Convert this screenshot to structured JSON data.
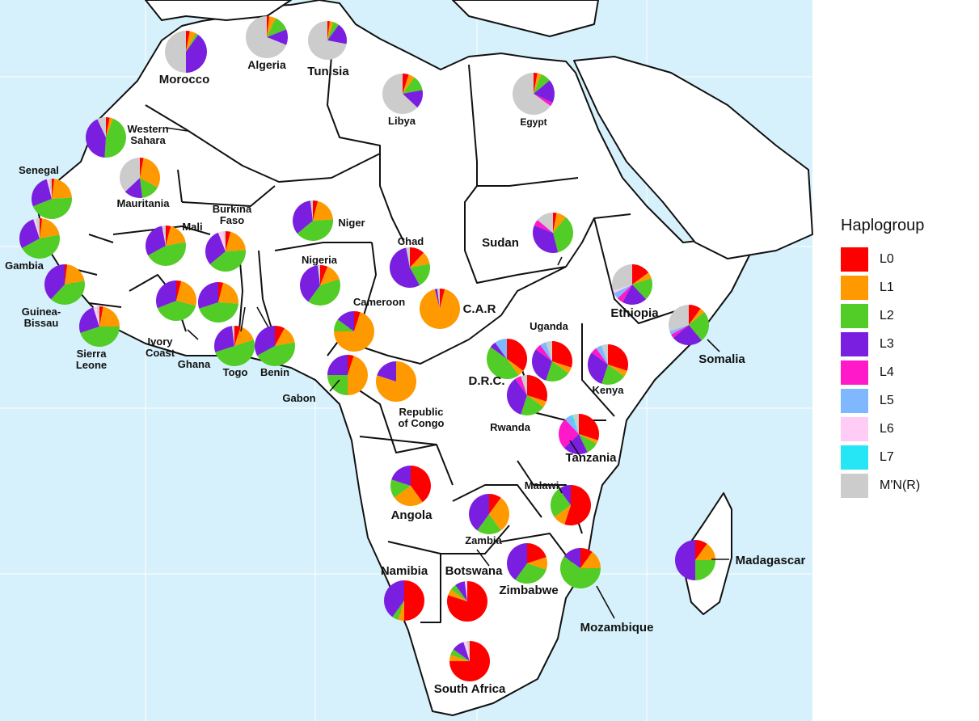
{
  "legend": {
    "title": "Haplogroup",
    "items": [
      {
        "label": "L0",
        "color": "#ff0000"
      },
      {
        "label": "L1",
        "color": "#ff9900"
      },
      {
        "label": "L2",
        "color": "#52cc26"
      },
      {
        "label": "L3",
        "color": "#7a1ee0"
      },
      {
        "label": "L4",
        "color": "#ff19c8"
      },
      {
        "label": "L5",
        "color": "#80b8ff"
      },
      {
        "label": "L6",
        "color": "#ffccf5"
      },
      {
        "label": "L7",
        "color": "#26e6f5"
      },
      {
        "label": "M'N(R)",
        "color": "#cccccc"
      }
    ]
  },
  "map": {
    "sea_color": "#d6f1fb",
    "land_color": "#ffffff",
    "border_color": "#111111"
  },
  "countries": [
    {
      "name": "Morocco",
      "pie": [
        3,
        5,
        2,
        40,
        0,
        0,
        0,
        0,
        50
      ]
    },
    {
      "name": "Algeria",
      "pie": [
        2,
        5,
        12,
        12,
        0,
        0,
        0,
        0,
        69
      ]
    },
    {
      "name": "Tunisia",
      "pie": [
        2,
        3,
        5,
        18,
        0,
        0,
        0,
        0,
        72
      ]
    },
    {
      "name": "Libya",
      "pie": [
        5,
        5,
        12,
        15,
        0,
        0,
        0,
        0,
        63
      ]
    },
    {
      "name": "Egypt",
      "pie": [
        3,
        3,
        8,
        18,
        3,
        0,
        0,
        0,
        65
      ]
    },
    {
      "name": "Western Sahara",
      "pie": [
        3,
        3,
        45,
        42,
        0,
        0,
        0,
        0,
        7
      ]
    },
    {
      "name": "Mauritania",
      "pie": [
        3,
        30,
        15,
        15,
        0,
        0,
        0,
        0,
        37
      ]
    },
    {
      "name": "Senegal",
      "pie": [
        2,
        22,
        45,
        27,
        0,
        0,
        2,
        0,
        2
      ]
    },
    {
      "name": "Gambia",
      "pie": [
        2,
        20,
        45,
        28,
        0,
        0,
        2,
        0,
        3
      ]
    },
    {
      "name": "Guinea-Bissau",
      "pie": [
        2,
        20,
        40,
        38,
        0,
        0,
        0,
        0,
        0
      ]
    },
    {
      "name": "Sierra Leone",
      "pie": [
        3,
        22,
        45,
        25,
        0,
        0,
        3,
        0,
        2
      ]
    },
    {
      "name": "Mali",
      "pie": [
        4,
        18,
        45,
        30,
        0,
        0,
        1,
        0,
        2
      ]
    },
    {
      "name": "Burkina Faso",
      "pie": [
        4,
        20,
        40,
        30,
        0,
        0,
        4,
        0,
        2
      ]
    },
    {
      "name": "Ivory Coast",
      "pie": [
        4,
        25,
        40,
        31,
        0,
        0,
        0,
        0,
        0
      ]
    },
    {
      "name": "Ghana",
      "pie": [
        4,
        22,
        44,
        30,
        0,
        0,
        0,
        0,
        0
      ]
    },
    {
      "name": "Togo",
      "pie": [
        5,
        15,
        50,
        28,
        0,
        0,
        0,
        0,
        2
      ]
    },
    {
      "name": "Benin",
      "pie": [
        8,
        14,
        45,
        33,
        0,
        0,
        0,
        0,
        0
      ]
    },
    {
      "name": "Niger",
      "pie": [
        4,
        20,
        40,
        34,
        0,
        0,
        0,
        0,
        2
      ]
    },
    {
      "name": "Nigeria",
      "pie": [
        6,
        14,
        40,
        38,
        0,
        0,
        0,
        0,
        2
      ]
    },
    {
      "name": "Chad",
      "pie": [
        12,
        10,
        20,
        55,
        0,
        0,
        0,
        0,
        3
      ]
    },
    {
      "name": "Cameroon",
      "pie": [
        5,
        70,
        10,
        15,
        0,
        0,
        0,
        0,
        0
      ]
    },
    {
      "name": "C.A.R",
      "pie": [
        4,
        92,
        0,
        2,
        0,
        0,
        0,
        0,
        2
      ]
    },
    {
      "name": "Sudan",
      "pie": [
        3,
        8,
        35,
        35,
        5,
        0,
        0,
        0,
        14
      ]
    },
    {
      "name": "Ethiopia",
      "pie": [
        15,
        5,
        18,
        20,
        5,
        5,
        2,
        0,
        30
      ]
    },
    {
      "name": "Somalia",
      "pie": [
        10,
        4,
        25,
        25,
        3,
        3,
        0,
        0,
        30
      ]
    },
    {
      "name": "Gabon",
      "pie": [
        5,
        45,
        25,
        25,
        0,
        0,
        0,
        0,
        0
      ]
    },
    {
      "name": "Republic of Congo",
      "pie": [
        0,
        80,
        0,
        20,
        0,
        0,
        0,
        0,
        0
      ]
    },
    {
      "name": "D.R.C.",
      "pie": [
        35,
        5,
        45,
        5,
        0,
        10,
        0,
        0,
        0
      ]
    },
    {
      "name": "Uganda",
      "pie": [
        30,
        5,
        20,
        30,
        5,
        5,
        0,
        0,
        5
      ]
    },
    {
      "name": "Kenya",
      "pie": [
        30,
        5,
        20,
        30,
        5,
        5,
        0,
        0,
        5
      ]
    },
    {
      "name": "Rwanda",
      "pie": [
        30,
        5,
        20,
        35,
        5,
        0,
        0,
        0,
        5
      ]
    },
    {
      "name": "Tanzania",
      "pie": [
        30,
        3,
        10,
        20,
        25,
        5,
        0,
        2,
        5
      ]
    },
    {
      "name": "Angola",
      "pie": [
        40,
        25,
        15,
        20,
        0,
        0,
        0,
        0,
        0
      ]
    },
    {
      "name": "Zambia",
      "pie": [
        10,
        30,
        20,
        40,
        0,
        0,
        0,
        0,
        0
      ]
    },
    {
      "name": "Malawi",
      "pie": [
        55,
        10,
        25,
        10,
        0,
        0,
        0,
        0,
        0
      ]
    },
    {
      "name": "Zimbabwe",
      "pie": [
        20,
        10,
        30,
        40,
        0,
        0,
        0,
        0,
        0
      ]
    },
    {
      "name": "Mozambique",
      "pie": [
        10,
        15,
        60,
        15,
        0,
        0,
        0,
        0,
        0
      ]
    },
    {
      "name": "Madagascar",
      "pie": [
        10,
        15,
        25,
        50,
        0,
        0,
        0,
        0,
        0
      ]
    },
    {
      "name": "Namibia",
      "pie": [
        50,
        5,
        5,
        40,
        0,
        0,
        0,
        0,
        0
      ]
    },
    {
      "name": "Botswana",
      "pie": [
        80,
        5,
        5,
        8,
        0,
        0,
        2,
        0,
        0
      ]
    },
    {
      "name": "South Africa",
      "pie": [
        75,
        5,
        5,
        10,
        0,
        0,
        3,
        0,
        2
      ]
    }
  ]
}
